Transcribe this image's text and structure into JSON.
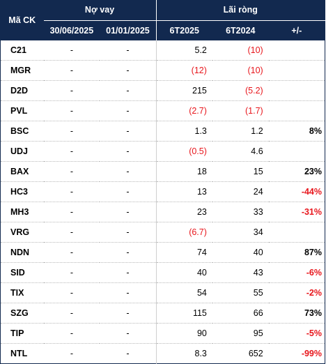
{
  "colors": {
    "header_bg": "#12294f",
    "negative": "#e8161c"
  },
  "header": {
    "code_label": "Mã CK",
    "group_debt": "Nợ vay",
    "group_profit": "Lãi ròng",
    "debt_date_1": "30/06/2025",
    "debt_date_2": "01/01/2025",
    "profit_period_1": "6T2025",
    "profit_period_2": "6T2024",
    "change_label": "+/-"
  },
  "rows": [
    {
      "code": "C21",
      "debt_1": "-",
      "debt_2": "-",
      "profit_1": "5.2",
      "profit_2": "(10)",
      "change": ""
    },
    {
      "code": "MGR",
      "debt_1": "-",
      "debt_2": "-",
      "profit_1": "(12)",
      "profit_2": "(10)",
      "change": ""
    },
    {
      "code": "D2D",
      "debt_1": "-",
      "debt_2": "-",
      "profit_1": "215",
      "profit_2": "(5.2)",
      "change": ""
    },
    {
      "code": "PVL",
      "debt_1": "-",
      "debt_2": "-",
      "profit_1": "(2.7)",
      "profit_2": "(1.7)",
      "change": ""
    },
    {
      "code": "BSC",
      "debt_1": "-",
      "debt_2": "-",
      "profit_1": "1.3",
      "profit_2": "1.2",
      "change": "8%"
    },
    {
      "code": "UDJ",
      "debt_1": "-",
      "debt_2": "-",
      "profit_1": "(0.5)",
      "profit_2": "4.6",
      "change": ""
    },
    {
      "code": "BAX",
      "debt_1": "-",
      "debt_2": "-",
      "profit_1": "18",
      "profit_2": "15",
      "change": "23%"
    },
    {
      "code": "HC3",
      "debt_1": "-",
      "debt_2": "-",
      "profit_1": "13",
      "profit_2": "24",
      "change": "-44%"
    },
    {
      "code": "MH3",
      "debt_1": "-",
      "debt_2": "-",
      "profit_1": "23",
      "profit_2": "33",
      "change": "-31%"
    },
    {
      "code": "VRG",
      "debt_1": "-",
      "debt_2": "-",
      "profit_1": "(6.7)",
      "profit_2": "34",
      "change": ""
    },
    {
      "code": "NDN",
      "debt_1": "-",
      "debt_2": "-",
      "profit_1": "74",
      "profit_2": "40",
      "change": "87%"
    },
    {
      "code": "SID",
      "debt_1": "-",
      "debt_2": "-",
      "profit_1": "40",
      "profit_2": "43",
      "change": "-6%"
    },
    {
      "code": "TIX",
      "debt_1": "-",
      "debt_2": "-",
      "profit_1": "54",
      "profit_2": "55",
      "change": "-2%"
    },
    {
      "code": "SZG",
      "debt_1": "-",
      "debt_2": "-",
      "profit_1": "115",
      "profit_2": "66",
      "change": "73%"
    },
    {
      "code": "TIP",
      "debt_1": "-",
      "debt_2": "-",
      "profit_1": "90",
      "profit_2": "95",
      "change": "-5%"
    },
    {
      "code": "NTL",
      "debt_1": "-",
      "debt_2": "-",
      "profit_1": "8.3",
      "profit_2": "652",
      "change": "-99%"
    }
  ]
}
